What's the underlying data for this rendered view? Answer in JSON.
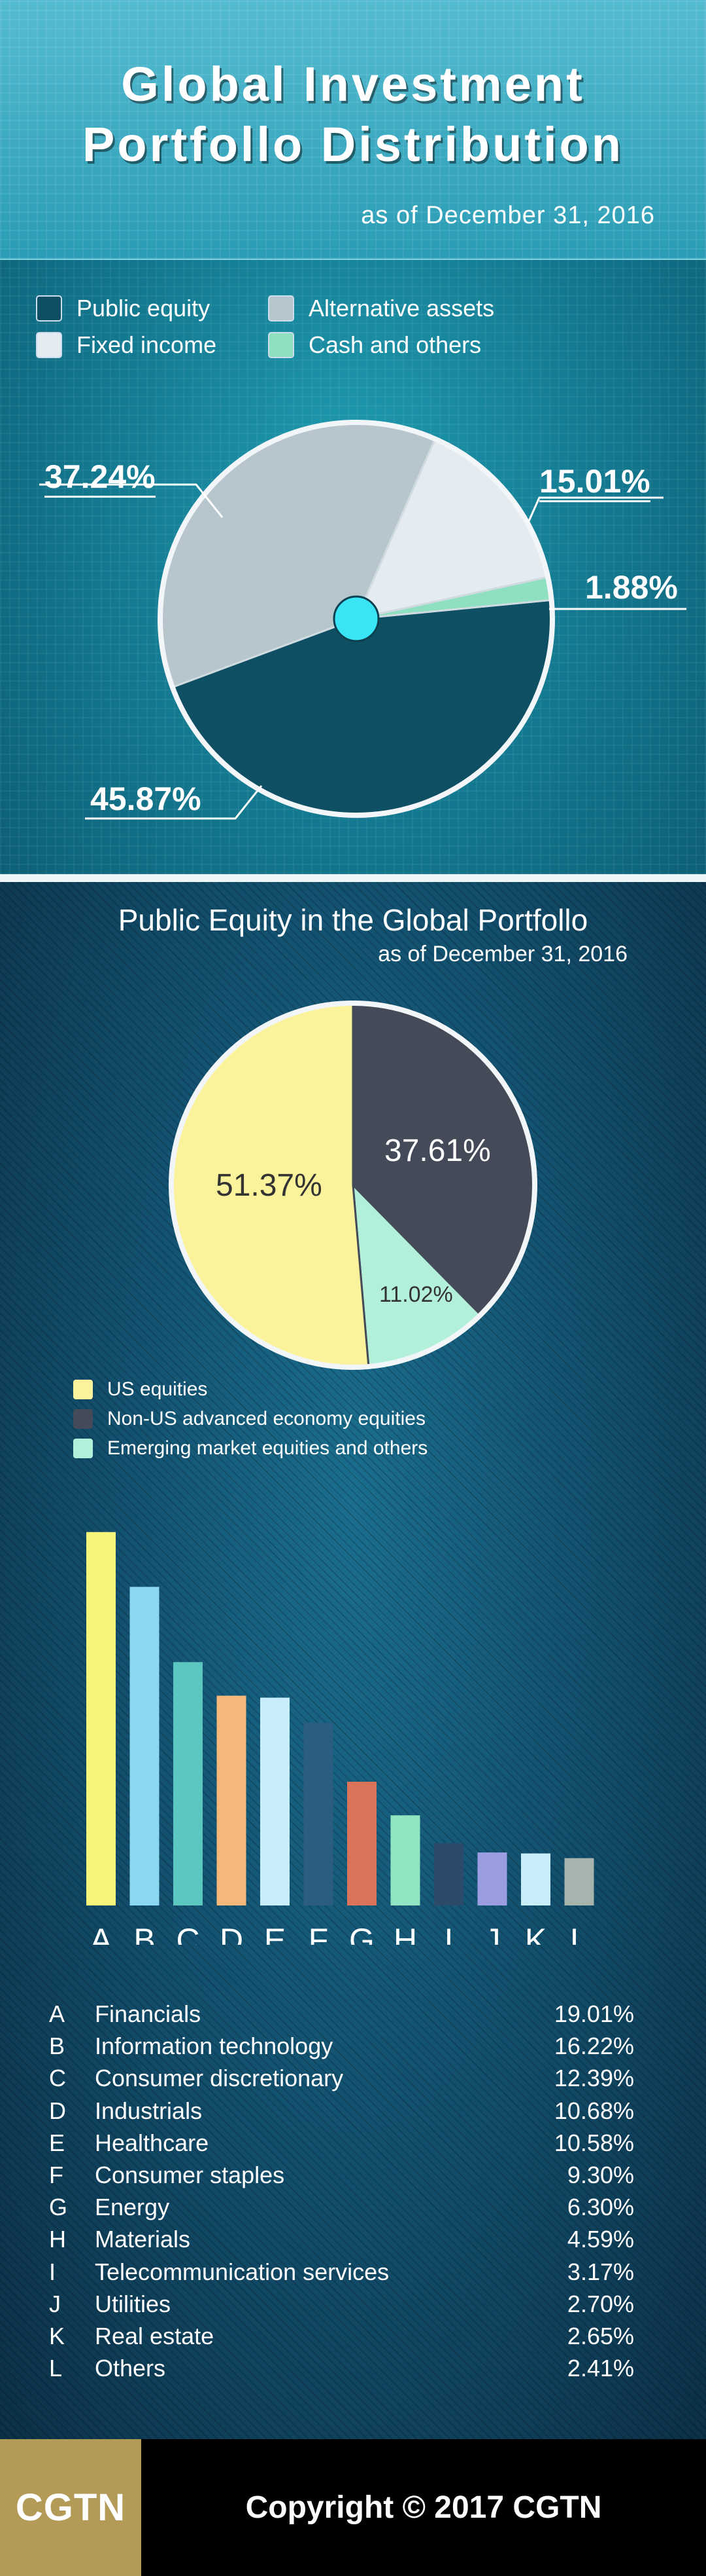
{
  "header": {
    "title_line1": "Global Investment",
    "title_line2": "Portfollo Distribution",
    "as_of": "as of December 31, 2016"
  },
  "section2": {
    "title": "Public Equity in the Global Portfollo",
    "as_of": "as of December 31, 2016"
  },
  "footer": {
    "logo": "CGTN",
    "copyright": "Copyright © 2017 CGTN"
  },
  "colors": {
    "public_equity": "#0e4f63",
    "alternative_assets": "#b7c6cd",
    "fixed_income": "#e4ecf1",
    "cash_and_others": "#8fe0c0",
    "us_equities": "#fbf29c",
    "non_us_advanced": "#444a58",
    "emerging": "#b2f0da"
  },
  "chart_data": [
    {
      "type": "pie",
      "title": "Global Investment Portfollo Distribution",
      "subtitle": "as of December 31, 2016",
      "legend": [
        "Public equity",
        "Alternative assets",
        "Fixed income",
        "Cash and others"
      ],
      "slices": [
        {
          "name": "Public equity",
          "value": 45.87,
          "label": "45.87%",
          "color": "#0e4f63"
        },
        {
          "name": "Alternative assets",
          "value": 37.24,
          "label": "37.24%",
          "color": "#b7c6cd"
        },
        {
          "name": "Fixed income",
          "value": 15.01,
          "label": "15.01%",
          "color": "#e4ecf1"
        },
        {
          "name": "Cash and others",
          "value": 1.88,
          "label": "1.88%",
          "color": "#8fe0c0"
        }
      ]
    },
    {
      "type": "pie",
      "title": "Public Equity in the Global Portfollo",
      "subtitle": "as of December 31, 2016",
      "legend": [
        "US equities",
        "Non-US advanced economy equities",
        "Emerging market equities and others"
      ],
      "slices": [
        {
          "name": "US equities",
          "value": 51.37,
          "label": "51.37%",
          "color": "#fbf29c"
        },
        {
          "name": "Non-US advanced economy equities",
          "value": 37.61,
          "label": "37.61%",
          "color": "#444a58"
        },
        {
          "name": "Emerging market equities and others",
          "value": 11.02,
          "label": "11.02%",
          "color": "#b2f0da"
        }
      ]
    },
    {
      "type": "bar",
      "categories": [
        "A",
        "B",
        "C",
        "D",
        "E",
        "F",
        "G",
        "H",
        "I",
        "J",
        "K",
        "L"
      ],
      "names": [
        "Financials",
        "Information technology",
        "Consumer discretionary",
        "Industrials",
        "Healthcare",
        "Consumer staples",
        "Energy",
        "Materials",
        "Telecommunication services",
        "Utilities",
        "Real estate",
        "Others"
      ],
      "values": [
        19.01,
        16.22,
        12.39,
        10.68,
        10.58,
        9.3,
        6.3,
        4.59,
        3.17,
        2.7,
        2.65,
        2.41
      ],
      "labels": [
        "19.01%",
        "16.22%",
        "12.39%",
        "10.68%",
        "10.58%",
        "9.30%",
        "6.30%",
        "4.59%",
        "3.17%",
        "2.70%",
        "2.65%",
        "2.41%"
      ],
      "colors": [
        "#f6f77a",
        "#8bd8f0",
        "#5cc6c0",
        "#f5b77a",
        "#c8eefc",
        "#2b5d80",
        "#d9745a",
        "#8fe6c0",
        "#2c4a6a",
        "#9a9ee0",
        "#c8eefc",
        "#a7b3ad"
      ],
      "ylim": [
        0,
        20
      ]
    }
  ]
}
